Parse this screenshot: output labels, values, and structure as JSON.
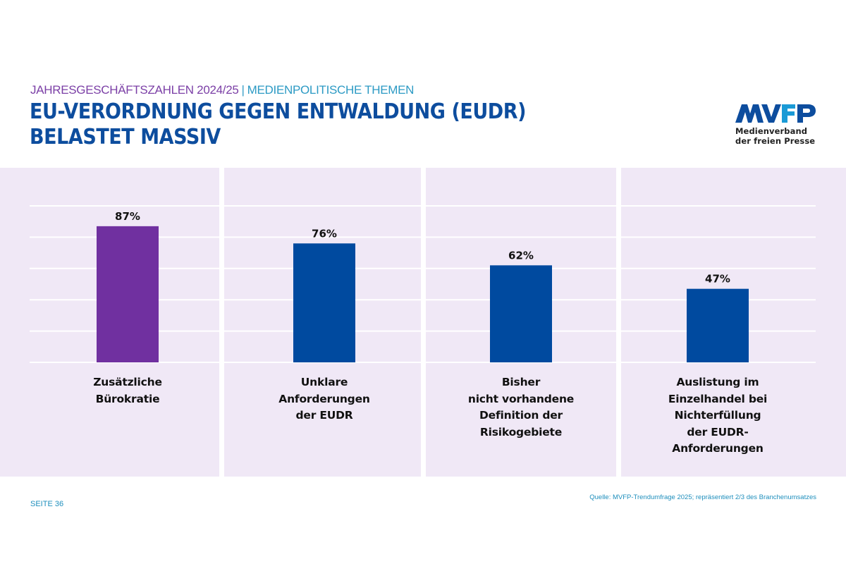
{
  "header": {
    "subtitle_part1": "JAHRESGESCHÄFTSZAHLEN 2024/25",
    "subtitle_separator": "|",
    "subtitle_part2": "MEDIENPOLITISCHE THEMEN",
    "title_lines": [
      "EU-VERORDNUNG GEGEN ENTWALDUNG (EUDR)",
      "BELASTET MASSIV"
    ]
  },
  "logo": {
    "wordmark": "MVFP",
    "tagline_lines": [
      "Medienverband",
      "der freien Presse"
    ]
  },
  "footer": {
    "page": "SEITE 36",
    "source": "Quelle: MVFP-Trendumfrage 2025; repräsentiert 2/3 des Branchenumsatzes"
  },
  "colors": {
    "highlight_bar": "#7030a0",
    "bar": "#004a9f",
    "panel_background": "#f0e8f6",
    "title": "#0d4d9e",
    "subtitle_purple": "#7b3fa6",
    "subtitle_teal": "#2c9ac4",
    "logo_dark_blue": "#0d4d9e",
    "logo_teal": "#1a9ad6"
  },
  "chart_data": {
    "type": "bar",
    "title": "EU-Verordnung gegen Entwaldung (EUDR) belastet massiv",
    "xlabel": "",
    "ylabel": "",
    "ylim": [
      0,
      100
    ],
    "yticks": [
      0,
      20,
      40,
      60,
      80,
      100
    ],
    "grid": true,
    "legend": "none",
    "categories": [
      "Zusätzliche Bürokratie",
      "Unklare Anforderungen der EUDR",
      "Bisher nicht vorhandene Definition der Risikogebiete",
      "Auslistung im Einzelhandel bei Nichterfüllung der EUDR-Anforderungen"
    ],
    "category_label_lines": [
      [
        "Zusätzliche",
        "Bürokratie"
      ],
      [
        "Unklare",
        "Anforderungen",
        "der EUDR"
      ],
      [
        "Bisher",
        "nicht vorhandene",
        "Definition der",
        "Risikogebiete"
      ],
      [
        "Auslistung im",
        "Einzelhandel bei",
        "Nichterfüllung",
        "der EUDR-",
        "Anforderungen"
      ]
    ],
    "values": [
      87,
      76,
      62,
      47
    ],
    "data_labels": [
      "87%",
      "76%",
      "62%",
      "47%"
    ],
    "highlighted_index": 0,
    "unit": "%"
  }
}
